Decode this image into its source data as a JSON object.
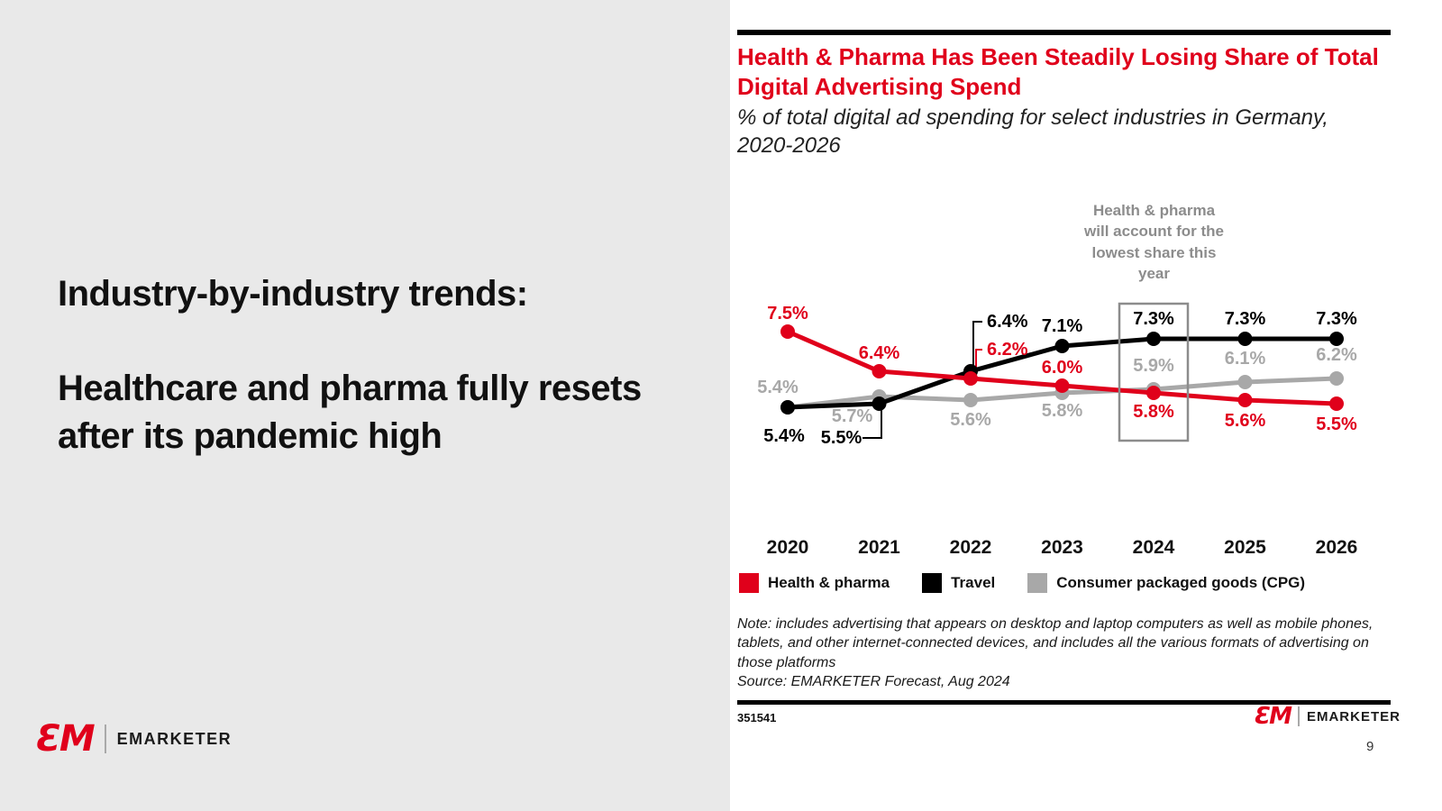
{
  "slide": {
    "page_number": "9"
  },
  "left_panel": {
    "heading_intro": "Industry-by-industry trends:",
    "heading_main": "Healthcare and pharma fully resets after its pandemic high",
    "logo": {
      "mark": "ƐM",
      "wordmark": "EMARKETER"
    }
  },
  "chart_panel": {
    "note": "Note: includes advertising that appears on desktop and laptop computers as well as mobile phones, tablets, and other internet-connected devices, and includes all the various formats of advertising on those platforms",
    "source": "Source: EMARKETER Forecast, Aug 2024",
    "chart_id": "351541",
    "footer_logo": {
      "mark": "ƐM",
      "wordmark": "EMARKETER"
    }
  },
  "chart_data": {
    "type": "line",
    "title": "Health & Pharma Has Been Steadily Losing Share of Total Digital Advertising Spend",
    "subtitle": "% of total digital ad spending for select industries in Germany, 2020-2026",
    "categories": [
      "2020",
      "2021",
      "2022",
      "2023",
      "2024",
      "2025",
      "2026"
    ],
    "series": [
      {
        "name": "Health & pharma",
        "color": "#e0001b",
        "values": [
          7.5,
          6.4,
          6.2,
          6.0,
          5.8,
          5.6,
          5.5
        ]
      },
      {
        "name": "Travel",
        "color": "#000000",
        "values": [
          5.4,
          5.5,
          6.4,
          7.1,
          7.3,
          7.3,
          7.3
        ]
      },
      {
        "name": "Consumer packaged goods (CPG)",
        "color": "#a8a8a8",
        "values": [
          5.4,
          5.7,
          5.6,
          5.8,
          5.9,
          6.1,
          6.2
        ]
      }
    ],
    "value_suffix": "%",
    "ylim": [
      5.0,
      8.0
    ],
    "grid": false,
    "legend_position": "bottom",
    "annotation": "Health & pharma will account for the lowest share this year",
    "highlight_category": "2024",
    "xlabel": "",
    "ylabel": ""
  }
}
